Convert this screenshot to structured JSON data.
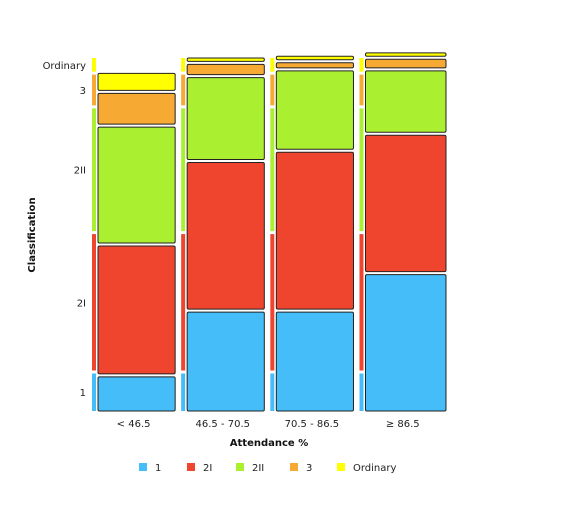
{
  "chart_data": {
    "type": "mosaic",
    "xlabel": "Attendance %",
    "ylabel": "Classification",
    "categories": [
      "< 46.5",
      "46.5 - 70.5",
      "70.5 - 86.5",
      "≥ 86.5"
    ],
    "column_share": [
      0.2475,
      0.2475,
      0.2475,
      0.2575
    ],
    "classes": [
      "1",
      "2I",
      "2II",
      "3",
      "Ordinary"
    ],
    "colors": [
      "#44bdf8",
      "#ef452f",
      "#aaef30",
      "#f6a933",
      "#ffff00"
    ],
    "class_axis_share": [
      0.11,
      0.4,
      0.36,
      0.09,
      0.04
    ],
    "proportions": [
      [
        0.1,
        0.375,
        0.34,
        0.09,
        0.05
      ],
      [
        0.29,
        0.43,
        0.24,
        0.03,
        0.01
      ],
      [
        0.29,
        0.46,
        0.23,
        0.015,
        0.01
      ],
      [
        0.4,
        0.4,
        0.18,
        0.025,
        0.01
      ]
    ],
    "legend": [
      "1",
      "2I",
      "2II",
      "3",
      "Ordinary"
    ],
    "legend_position": "bottom"
  }
}
